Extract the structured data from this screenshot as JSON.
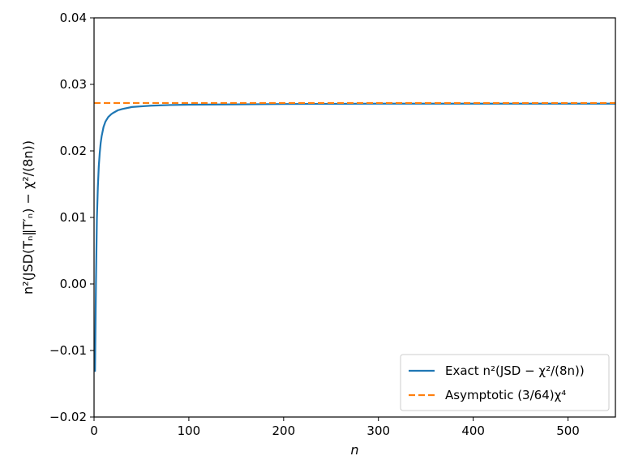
{
  "chart_data": {
    "type": "line",
    "title": "",
    "xlabel": "n",
    "ylabel": "n²(JSD(Tₙ‖T′ₙ) − χ²/(8n))",
    "xlim": [
      0,
      550
    ],
    "ylim": [
      -0.02,
      0.04
    ],
    "x_ticks": [
      0,
      100,
      200,
      300,
      400,
      500
    ],
    "x_tick_labels": [
      "0",
      "100",
      "200",
      "300",
      "400",
      "500"
    ],
    "y_ticks": [
      -0.02,
      -0.01,
      0.0,
      0.01,
      0.02,
      0.03,
      0.04
    ],
    "y_tick_labels": [
      "−0.02",
      "−0.01",
      "0.00",
      "0.01",
      "0.02",
      "0.03",
      "0.04"
    ],
    "grid": false,
    "legend_position": "lower-right",
    "series": [
      {
        "name": "Exact n²(JSD − χ²/(8n))",
        "color": "#1f77b4",
        "style": "solid",
        "x": [
          1,
          2,
          3,
          4,
          5,
          6,
          7,
          8,
          10,
          12,
          15,
          18,
          20,
          25,
          30,
          40,
          50,
          60,
          80,
          100,
          150,
          200,
          300,
          400,
          500,
          550
        ],
        "y": [
          -0.0132,
          0.0,
          0.0098,
          0.0145,
          0.0177,
          0.0197,
          0.0212,
          0.0222,
          0.0236,
          0.0244,
          0.0251,
          0.0255,
          0.0257,
          0.0261,
          0.0263,
          0.0266,
          0.0267,
          0.0268,
          0.0269,
          0.02695,
          0.027,
          0.02705,
          0.0271,
          0.0271,
          0.0271,
          0.0271
        ]
      },
      {
        "name": "Asymptotic (3/64)χ⁴",
        "color": "#ff7f0e",
        "style": "dashed",
        "x": [
          0,
          550
        ],
        "y": [
          0.0272,
          0.0272
        ]
      }
    ]
  }
}
